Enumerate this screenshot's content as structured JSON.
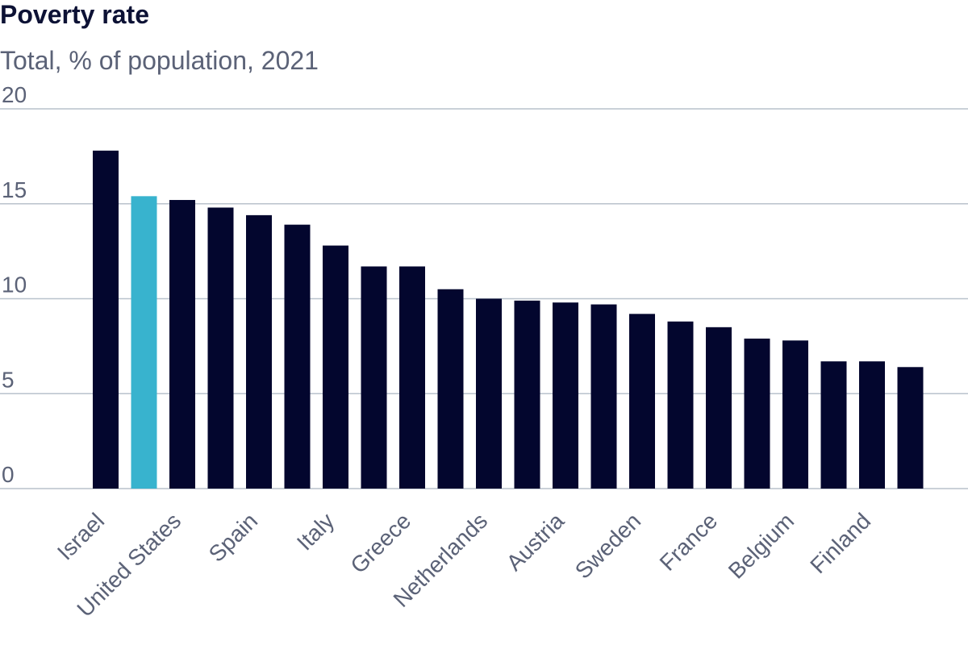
{
  "chart_data": {
    "type": "bar",
    "title": "Poverty rate",
    "subtitle": "Total, % of population, 2021",
    "xlabel": "",
    "ylabel": "",
    "ylim": [
      0,
      20
    ],
    "yticks": [
      0,
      5,
      10,
      15,
      20
    ],
    "grid": true,
    "colors": {
      "default": "#03062e",
      "highlight": "#38b3ce",
      "grid": "#b9c2cc",
      "text": "#5b6277",
      "title": "#0d1235"
    },
    "bars": [
      {
        "label": "Israel",
        "value": 17.8,
        "highlight": false
      },
      {
        "label": "",
        "value": 15.4,
        "highlight": true
      },
      {
        "label": "United States",
        "value": 15.2,
        "highlight": false
      },
      {
        "label": "",
        "value": 14.8,
        "highlight": false
      },
      {
        "label": "Spain",
        "value": 14.4,
        "highlight": false
      },
      {
        "label": "",
        "value": 13.9,
        "highlight": false
      },
      {
        "label": "Italy",
        "value": 12.8,
        "highlight": false
      },
      {
        "label": "",
        "value": 11.7,
        "highlight": false
      },
      {
        "label": "Greece",
        "value": 11.7,
        "highlight": false
      },
      {
        "label": "",
        "value": 10.5,
        "highlight": false
      },
      {
        "label": "Netherlands",
        "value": 10.0,
        "highlight": false
      },
      {
        "label": "",
        "value": 9.9,
        "highlight": false
      },
      {
        "label": "Austria",
        "value": 9.8,
        "highlight": false
      },
      {
        "label": "",
        "value": 9.7,
        "highlight": false
      },
      {
        "label": "Sweden",
        "value": 9.2,
        "highlight": false
      },
      {
        "label": "",
        "value": 8.8,
        "highlight": false
      },
      {
        "label": "France",
        "value": 8.5,
        "highlight": false
      },
      {
        "label": "",
        "value": 7.9,
        "highlight": false
      },
      {
        "label": "Belgium",
        "value": 7.8,
        "highlight": false
      },
      {
        "label": "",
        "value": 6.7,
        "highlight": false
      },
      {
        "label": "Finland",
        "value": 6.7,
        "highlight": false
      },
      {
        "label": "",
        "value": 6.4,
        "highlight": false
      }
    ]
  }
}
